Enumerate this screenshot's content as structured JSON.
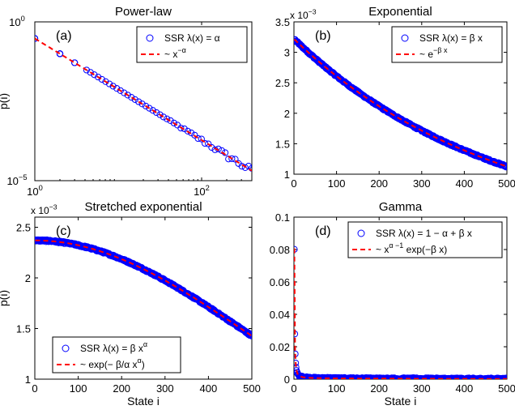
{
  "series_colors": {
    "ssr": "#0000ff",
    "fit": "#ff0000"
  },
  "chart_data": [
    {
      "type": "scatter",
      "title": "Power-law",
      "panel_label": "(a)",
      "ylabel": "p(i)",
      "xlabel": "",
      "xscale": "log",
      "yscale": "log",
      "xlim": [
        1,
        400
      ],
      "ylim": [
        1e-05,
        1
      ],
      "x_ticks": [
        {
          "value": 1,
          "base": "10",
          "exp": "0"
        },
        {
          "value": 100,
          "base": "10",
          "exp": "2"
        }
      ],
      "y_ticks": [
        {
          "value": 1e-05,
          "base": "10",
          "exp": "−5"
        },
        {
          "value": 1,
          "base": "10",
          "exp": "0"
        }
      ],
      "legend": {
        "position": "top-right",
        "entries": [
          {
            "series": "ssr",
            "label": "SSR λ(x) = α"
          },
          {
            "series": "fit",
            "label": "~ x",
            "sup": "−α"
          }
        ]
      },
      "series": [
        {
          "name": "SSR λ(x) = α",
          "marker": "circle",
          "law": "power",
          "params": {
            "C": 0.3,
            "alpha": 1.6
          },
          "x_range": [
            1,
            400
          ],
          "n": 60,
          "noise_start": 30
        },
        {
          "name": "~ x^−α",
          "style": "dashed",
          "law": "power",
          "params": {
            "C": 0.3,
            "alpha": 1.6
          },
          "x_range": [
            1,
            400
          ]
        }
      ]
    },
    {
      "type": "scatter",
      "title": "Exponential",
      "panel_label": "(b)",
      "ylabel": "",
      "xlabel": "",
      "xlim": [
        0,
        500
      ],
      "ylim": [
        0.001,
        0.0035
      ],
      "y_multiplier": {
        "base": "x 10",
        "exp": "−3"
      },
      "x_ticks": [
        0,
        100,
        200,
        300,
        400,
        500
      ],
      "y_ticks": [
        0.001,
        0.0015,
        0.002,
        0.0025,
        0.003,
        0.0035
      ],
      "y_tick_labels": [
        "1",
        "1.5",
        "2",
        "2.5",
        "3",
        "3.5"
      ],
      "legend": {
        "position": "top-right",
        "entries": [
          {
            "series": "ssr",
            "label": "SSR λ(x) = β x"
          },
          {
            "series": "fit",
            "label": "~ e",
            "sup": "−β x"
          }
        ]
      },
      "series": [
        {
          "name": "SSR λ(x) = β x",
          "marker": "circle",
          "law": "exp",
          "params": {
            "C": 0.00322,
            "beta": 0.0021
          },
          "x_range": [
            1,
            500
          ],
          "n": 500
        },
        {
          "name": "~ e^−β x",
          "style": "dashed",
          "law": "exp",
          "params": {
            "C": 0.00322,
            "beta": 0.0021
          },
          "x_range": [
            1,
            500
          ]
        }
      ]
    },
    {
      "type": "scatter",
      "title": "Stretched exponential",
      "panel_label": "(c)",
      "ylabel": "p(i)",
      "xlabel": "State i",
      "xlim": [
        0,
        500
      ],
      "ylim": [
        0.001,
        0.0026
      ],
      "y_multiplier": {
        "base": "x 10",
        "exp": "−3"
      },
      "x_ticks": [
        0,
        100,
        200,
        300,
        400,
        500
      ],
      "y_ticks": [
        0.001,
        0.0015,
        0.002,
        0.0025
      ],
      "y_tick_labels": [
        "1",
        "1.5",
        "2",
        "2.5"
      ],
      "legend": {
        "position": "bottom-left",
        "entries": [
          {
            "series": "ssr",
            "label": "SSR λ(x) = β x",
            "sup": "α"
          },
          {
            "series": "fit",
            "label": "~ exp(− β/α x",
            "sup": "α",
            "tail": ")"
          }
        ]
      },
      "series": [
        {
          "name": "SSR λ(x) = β x^α",
          "marker": "circle",
          "law": "stretched",
          "params": {
            "C": 0.00237,
            "k": 2.03e-06,
            "alpha": 2.0
          },
          "x_range": [
            1,
            500
          ],
          "n": 500
        },
        {
          "name": "~ exp(−β/α x^α)",
          "style": "dashed",
          "law": "stretched",
          "params": {
            "C": 0.00237,
            "k": 2.03e-06,
            "alpha": 2.0
          },
          "x_range": [
            1,
            500
          ]
        }
      ]
    },
    {
      "type": "scatter",
      "title": "Gamma",
      "panel_label": "(d)",
      "ylabel": "",
      "xlabel": "State i",
      "xlim": [
        0,
        500
      ],
      "ylim": [
        0,
        0.1
      ],
      "x_ticks": [
        0,
        100,
        200,
        300,
        400,
        500
      ],
      "y_ticks": [
        0,
        0.02,
        0.04,
        0.06,
        0.08,
        0.1
      ],
      "y_tick_labels": [
        "0",
        "0.02",
        "0.04",
        "0.06",
        "0.08",
        "0.1"
      ],
      "legend": {
        "position": "top-right",
        "entries": [
          {
            "series": "ssr",
            "label": "SSR λ(x) = 1 − α + β x"
          },
          {
            "series": "fit",
            "label": "~ x",
            "sup": "α −1",
            "tail": " exp(−β x)"
          }
        ]
      },
      "series": [
        {
          "name": "SSR λ(x) = 1 − α + β x",
          "marker": "circle",
          "law": "gamma",
          "params": {
            "C": 0.08,
            "a": 1.35,
            "beta": 0.002
          },
          "x_range": [
            1,
            500
          ],
          "n": 500
        },
        {
          "name": "~ x^(α−1) exp(−β x)",
          "style": "dashed",
          "law": "gamma",
          "params": {
            "C": 0.08,
            "a": 1.35,
            "beta": 0.002
          },
          "x_range": [
            1,
            500
          ]
        }
      ]
    }
  ]
}
